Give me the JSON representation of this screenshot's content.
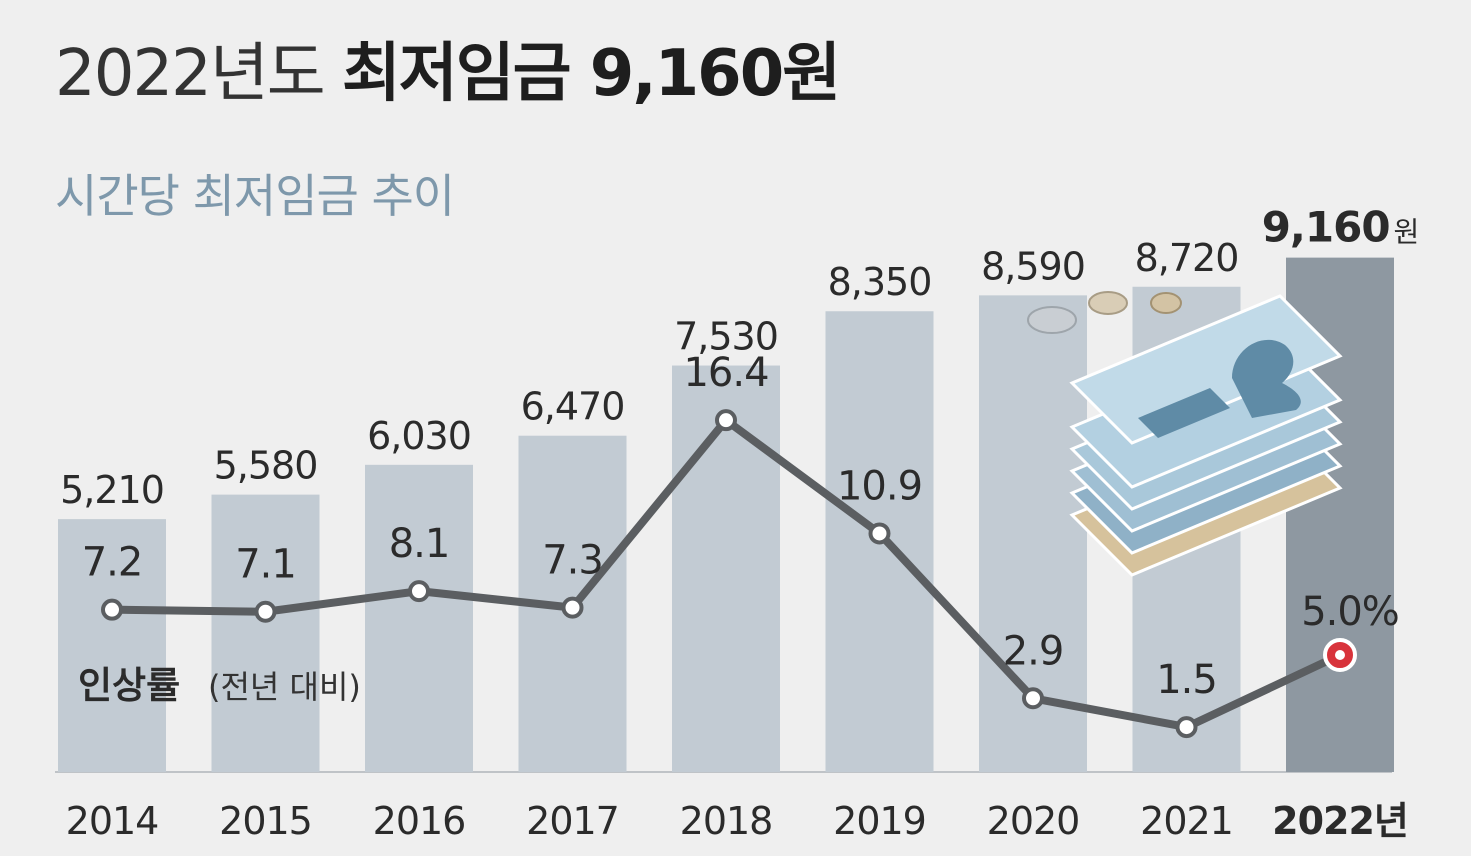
{
  "title": {
    "light": "2022년도",
    "bold": "최저임금 9,160원"
  },
  "subtitle": "시간당 최저임금 추이",
  "chart_data": {
    "type": "bar",
    "categories": [
      "2014",
      "2015",
      "2016",
      "2017",
      "2018",
      "2019",
      "2020",
      "2021",
      "2022년"
    ],
    "series": [
      {
        "values": [
          5210,
          5580,
          6030,
          6470,
          7530,
          8350,
          8590,
          8720,
          9160
        ]
      },
      {
        "name": "인상률",
        "type": "line",
        "values": [
          7.2,
          7.1,
          8.1,
          7.3,
          16.4,
          10.9,
          2.9,
          1.5,
          5.0
        ]
      }
    ],
    "bar_labels": [
      "5,210",
      "5,580",
      "6,030",
      "6,470",
      "7,530",
      "8,350",
      "8,590",
      "8,720",
      "9,160"
    ],
    "bar_last_unit": "원",
    "line_labels": [
      "7.2",
      "7.1",
      "8.1",
      "7.3",
      "16.4",
      "10.9",
      "2.9",
      "1.5",
      "5.0%"
    ],
    "line_legend": {
      "name": "인상률",
      "note": "(전년 대비)"
    },
    "highlight_index": 8,
    "colors": {
      "background": "#efefef",
      "bar": "#c2cbd3",
      "bar_highlight": "#8e98a1",
      "line": "#5b5e61",
      "marker_fill": "#ffffff",
      "highlight_marker": "#d8333b",
      "label": "#2b2b2b"
    }
  }
}
